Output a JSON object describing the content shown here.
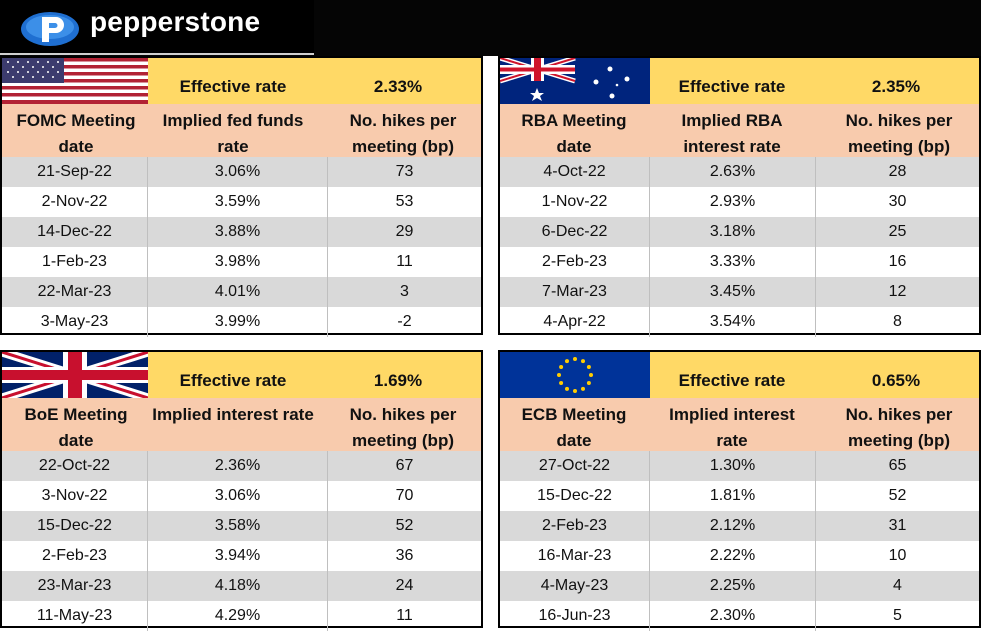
{
  "header": {
    "brand": "pepperstone"
  },
  "panels": {
    "us": {
      "effective_label": "Effective rate",
      "effective_value": "2.33%",
      "col1": "FOMC Meeting date",
      "col2": "Implied fed funds rate",
      "col3": "No. hikes per meeting (bp)",
      "rows": [
        [
          "21-Sep-22",
          "3.06%",
          "73"
        ],
        [
          "2-Nov-22",
          "3.59%",
          "53"
        ],
        [
          "14-Dec-22",
          "3.88%",
          "29"
        ],
        [
          "1-Feb-23",
          "3.98%",
          "11"
        ],
        [
          "22-Mar-23",
          "4.01%",
          "3"
        ],
        [
          "3-May-23",
          "3.99%",
          "-2"
        ]
      ]
    },
    "au": {
      "effective_label": "Effective rate",
      "effective_value": "2.35%",
      "col1": "RBA Meeting date",
      "col2": "Implied RBA interest rate",
      "col3": "No. hikes per meeting (bp)",
      "rows": [
        [
          "4-Oct-22",
          "2.63%",
          "28"
        ],
        [
          "1-Nov-22",
          "2.93%",
          "30"
        ],
        [
          "6-Dec-22",
          "3.18%",
          "25"
        ],
        [
          "2-Feb-23",
          "3.33%",
          "16"
        ],
        [
          "7-Mar-23",
          "3.45%",
          "12"
        ],
        [
          "4-Apr-22",
          "3.54%",
          "8"
        ]
      ]
    },
    "uk": {
      "effective_label": "Effective rate",
      "effective_value": "1.69%",
      "col1": "BoE Meeting date",
      "col2": "Implied interest rate",
      "col3": "No. hikes per meeting (bp)",
      "rows": [
        [
          "22-Oct-22",
          "2.36%",
          "67"
        ],
        [
          "3-Nov-22",
          "3.06%",
          "70"
        ],
        [
          "15-Dec-22",
          "3.58%",
          "52"
        ],
        [
          "2-Feb-23",
          "3.94%",
          "36"
        ],
        [
          "23-Mar-23",
          "4.18%",
          "24"
        ],
        [
          "11-May-23",
          "4.29%",
          "11"
        ]
      ]
    },
    "eu": {
      "effective_label": "Effective rate",
      "effective_value": "0.65%",
      "col1": "ECB Meeting date",
      "col2": "Implied interest rate",
      "col3": "No. hikes per meeting (bp)",
      "rows": [
        [
          "27-Oct-22",
          "1.30%",
          "65"
        ],
        [
          "15-Dec-22",
          "1.81%",
          "52"
        ],
        [
          "2-Feb-23",
          "2.12%",
          "31"
        ],
        [
          "16-Mar-23",
          "2.22%",
          "10"
        ],
        [
          "4-May-23",
          "2.25%",
          "4"
        ],
        [
          "16-Jun-23",
          "2.30%",
          "5"
        ]
      ]
    }
  },
  "colors": {
    "effective_row": "#ffd966",
    "header_row": "#f8cbad",
    "shaded_row": "#d9d9d9"
  }
}
